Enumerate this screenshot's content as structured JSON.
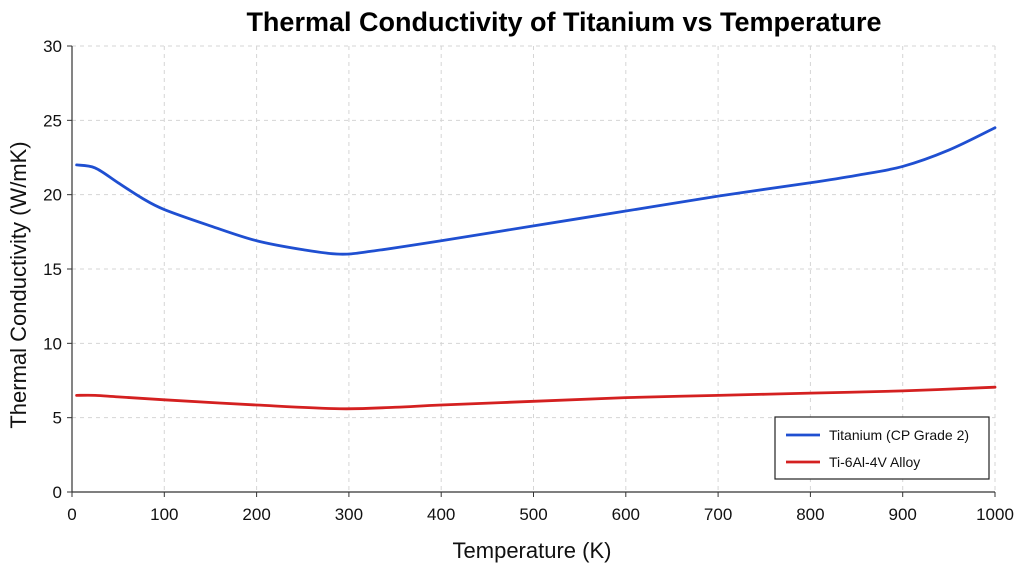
{
  "chart_data": {
    "type": "line",
    "title": "Thermal Conductivity of Titanium vs Temperature",
    "xlabel": "Temperature (K)",
    "ylabel": "Thermal Conductivity (W/mK)",
    "xlim": [
      0,
      1000
    ],
    "ylim": [
      0,
      30
    ],
    "xticks": [
      0,
      100,
      200,
      300,
      400,
      500,
      600,
      700,
      800,
      900,
      1000
    ],
    "yticks": [
      0,
      5,
      10,
      15,
      20,
      25,
      30
    ],
    "grid": true,
    "legend_position": "bottom-right",
    "series": [
      {
        "name": "Titanium (CP Grade 2)",
        "color": "#1f4fd1",
        "x": [
          5,
          25,
          50,
          75,
          100,
          150,
          200,
          250,
          290,
          325,
          400,
          500,
          600,
          700,
          800,
          850,
          900,
          950,
          1000
        ],
        "y": [
          22.0,
          21.8,
          20.8,
          19.8,
          19.0,
          17.9,
          16.9,
          16.3,
          16.0,
          16.2,
          16.9,
          17.9,
          18.9,
          19.9,
          20.8,
          21.3,
          21.9,
          23.0,
          24.5
        ]
      },
      {
        "name": "Ti-6Al-4V Alloy",
        "color": "#d42020",
        "x": [
          5,
          25,
          50,
          100,
          200,
          290,
          350,
          400,
          500,
          600,
          700,
          800,
          900,
          1000
        ],
        "y": [
          6.5,
          6.5,
          6.4,
          6.2,
          5.85,
          5.6,
          5.7,
          5.85,
          6.1,
          6.35,
          6.5,
          6.65,
          6.8,
          7.05
        ]
      }
    ]
  }
}
